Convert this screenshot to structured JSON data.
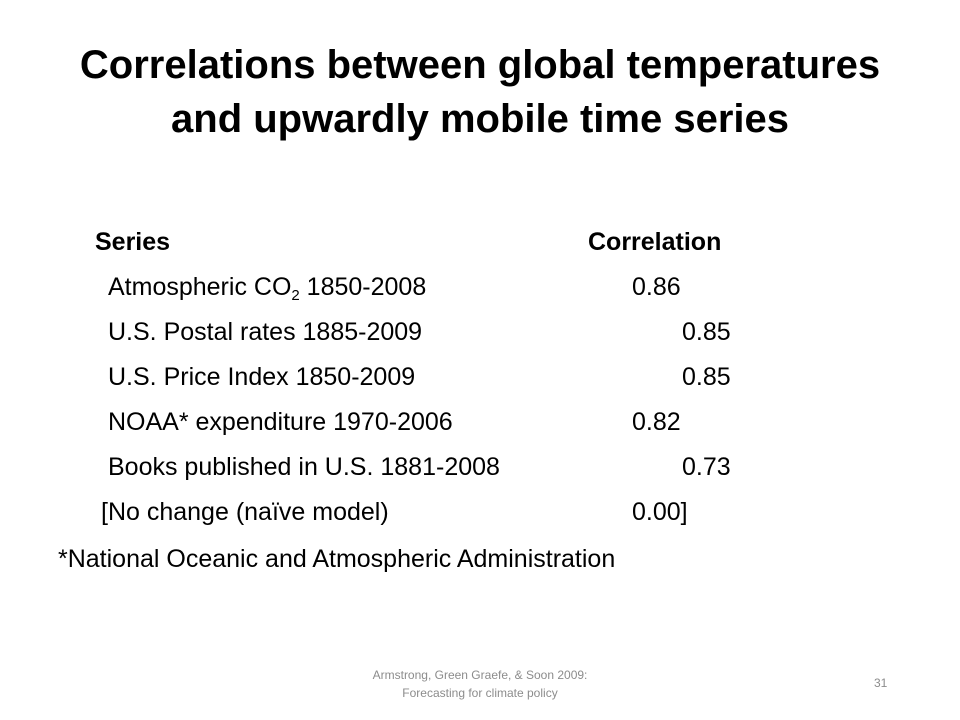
{
  "title": "Correlations between global temperatures and upwardly mobile time series",
  "table": {
    "header_series": "Series",
    "header_correlation": "Correlation",
    "rows": [
      {
        "series_prefix": "Atmospheric CO",
        "series_subscript": "2",
        "series_suffix": " 1850-2008",
        "correlation": "0.86"
      },
      {
        "series": "U.S. Postal rates 1885-2009",
        "correlation": "0.85"
      },
      {
        "series": "U.S. Price Index 1850-2009",
        "correlation": "0.85"
      },
      {
        "series": "NOAA* expenditure 1970-2006",
        "correlation": "0.82"
      },
      {
        "series": "Books published in U.S. 1881-2008",
        "correlation": "0.73"
      },
      {
        "series": "[No change (naïve model)",
        "correlation": "0.00]"
      }
    ]
  },
  "footnote": "*National Oceanic and Atmospheric Administration",
  "footer": {
    "citation": "Armstrong, Green Graefe, & Soon 2009:\nForecasting for climate policy",
    "slide_number": "31"
  }
}
